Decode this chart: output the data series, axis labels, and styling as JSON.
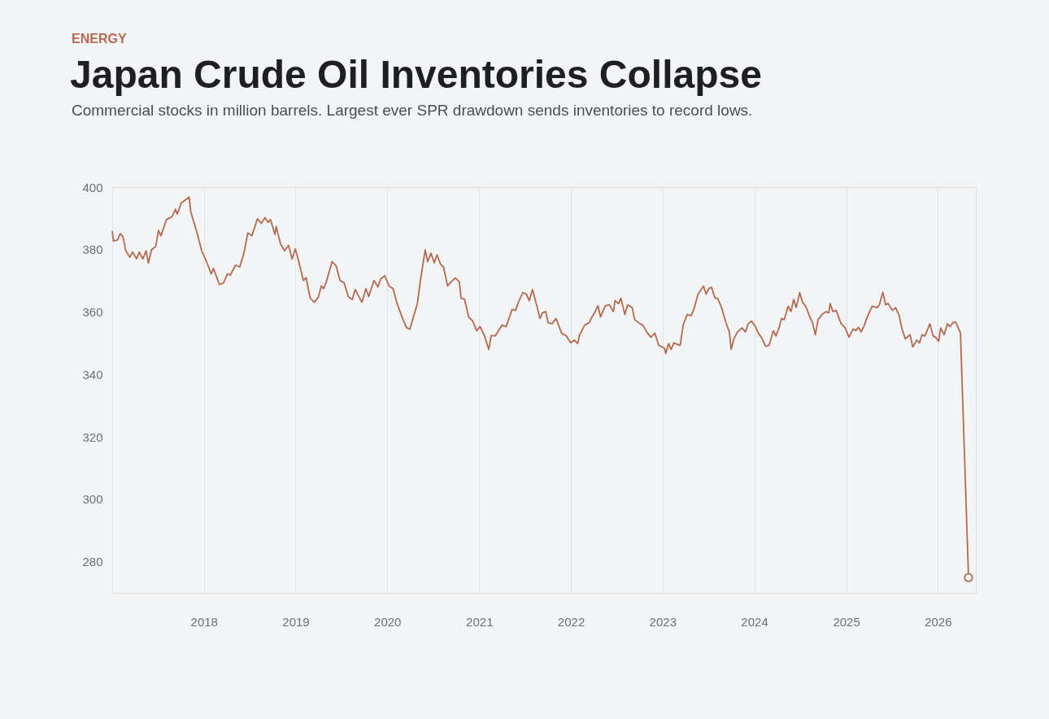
{
  "chart_data": {
    "type": "line",
    "title": "Japan Crude Oil Inventories Collapse",
    "subtitle": "Commercial stocks in million barrels. Largest ever SPR drawdown sends inventories to record lows.",
    "annotations": [
      "ENERGY"
    ],
    "xlim": [
      "2017-01-01",
      "2026-06-01"
    ],
    "xticks": [
      "2018",
      "2019",
      "2020",
      "2021",
      "2022",
      "2023",
      "2024",
      "2025",
      "2026"
    ],
    "ylim": [
      270,
      400
    ],
    "yticks": [
      280,
      300,
      320,
      340,
      360,
      380,
      400
    ],
    "grid": "x",
    "line_style": "solid",
    "marker": "none",
    "series": [
      {
        "color": "#b5694e",
        "x": [
          "2017-01-01",
          "2017-01-06",
          "2017-01-23",
          "2017-02-02",
          "2017-02-13",
          "2017-02-24",
          "2017-03-12",
          "2017-03-23",
          "2017-04-08",
          "2017-04-19",
          "2017-05-03",
          "2017-05-16",
          "2017-05-25",
          "2017-06-07",
          "2017-06-23",
          "2017-07-04",
          "2017-07-14",
          "2017-08-05",
          "2017-08-27",
          "2017-09-10",
          "2017-09-17",
          "2017-10-03",
          "2017-10-20",
          "2017-11-03",
          "2017-11-10",
          "2017-12-02",
          "2017-12-23",
          "2018-01-09",
          "2018-01-30",
          "2018-02-08",
          "2018-03-04",
          "2018-03-20",
          "2018-04-05",
          "2018-04-16",
          "2018-05-07",
          "2018-05-24",
          "2018-06-09",
          "2018-06-25",
          "2018-07-11",
          "2018-08-02",
          "2018-08-18",
          "2018-09-01",
          "2018-09-14",
          "2018-09-23",
          "2018-10-11",
          "2018-10-16",
          "2018-11-02",
          "2018-11-18",
          "2018-12-04",
          "2018-12-18",
          "2018-12-31",
          "2019-01-11",
          "2019-02-01",
          "2019-02-12",
          "2019-02-28",
          "2019-03-17",
          "2019-04-02",
          "2019-04-13",
          "2019-04-23",
          "2019-05-04",
          "2019-05-26",
          "2019-06-11",
          "2019-06-27",
          "2019-07-13",
          "2019-07-30",
          "2019-08-15",
          "2019-08-26",
          "2019-09-22",
          "2019-10-08",
          "2019-10-19",
          "2019-11-09",
          "2019-11-25",
          "2019-12-06",
          "2019-12-22",
          "2020-01-08",
          "2020-01-24",
          "2020-02-09",
          "2020-03-02",
          "2020-03-18",
          "2020-03-31",
          "2020-04-14",
          "2020-04-30",
          "2020-05-11",
          "2020-05-31",
          "2020-06-10",
          "2020-06-23",
          "2020-07-06",
          "2020-07-17",
          "2020-07-31",
          "2020-08-12",
          "2020-08-28",
          "2020-09-11",
          "2020-09-28",
          "2020-10-14",
          "2020-10-21",
          "2020-11-04",
          "2020-11-20",
          "2020-12-06",
          "2020-12-22",
          "2021-01-05",
          "2021-01-22",
          "2021-02-08",
          "2021-02-18",
          "2021-03-06",
          "2021-03-23",
          "2021-04-02",
          "2021-04-18",
          "2021-05-12",
          "2021-05-26",
          "2021-06-06",
          "2021-06-24",
          "2021-07-08",
          "2021-07-19",
          "2021-08-01",
          "2021-08-15",
          "2021-08-31",
          "2021-09-10",
          "2021-09-23",
          "2021-10-02",
          "2021-10-18",
          "2021-11-03",
          "2021-11-25",
          "2021-12-14",
          "2021-12-31",
          "2022-01-15",
          "2022-01-28",
          "2022-02-05",
          "2022-02-25",
          "2022-03-15",
          "2022-03-26",
          "2022-04-05",
          "2022-04-19",
          "2022-04-29",
          "2022-05-18",
          "2022-06-03",
          "2022-06-19",
          "2022-06-26",
          "2022-07-10",
          "2022-07-19",
          "2022-08-04",
          "2022-08-15",
          "2022-09-02",
          "2022-09-12",
          "2022-10-04",
          "2022-10-14",
          "2022-10-30",
          "2022-11-15",
          "2022-12-01",
          "2022-12-17",
          "2023-01-08",
          "2023-01-14",
          "2023-01-25",
          "2023-02-04",
          "2023-02-15",
          "2023-03-12",
          "2023-03-24",
          "2023-04-09",
          "2023-04-25",
          "2023-05-06",
          "2023-05-22",
          "2023-06-13",
          "2023-06-23",
          "2023-07-04",
          "2023-07-15",
          "2023-07-29",
          "2023-08-08",
          "2023-08-24",
          "2023-09-10",
          "2023-09-24",
          "2023-10-01",
          "2023-10-12",
          "2023-10-26",
          "2023-11-13",
          "2023-11-27",
          "2023-12-08",
          "2023-12-21",
          "2024-01-06",
          "2024-01-17",
          "2024-02-02",
          "2024-02-15",
          "2024-02-29",
          "2024-03-17",
          "2024-03-27",
          "2024-04-09",
          "2024-04-18",
          "2024-04-29",
          "2024-05-15",
          "2024-05-26",
          "2024-06-06",
          "2024-06-16",
          "2024-06-30",
          "2024-07-11",
          "2024-07-24",
          "2024-08-09",
          "2024-08-20",
          "2024-08-31",
          "2024-09-11",
          "2024-09-27",
          "2024-10-13",
          "2024-10-24",
          "2024-10-29",
          "2024-11-09",
          "2024-11-22",
          "2024-12-12",
          "2024-12-28",
          "2025-01-12",
          "2025-01-28",
          "2025-02-08",
          "2025-02-19",
          "2025-03-01",
          "2025-03-12",
          "2025-03-28",
          "2025-04-14",
          "2025-05-05",
          "2025-05-13",
          "2025-05-27",
          "2025-06-07",
          "2025-06-17",
          "2025-07-04",
          "2025-07-17",
          "2025-07-31",
          "2025-08-10",
          "2025-08-24",
          "2025-09-12",
          "2025-09-23",
          "2025-10-09",
          "2025-10-20",
          "2025-10-30",
          "2025-11-10",
          "2025-11-19",
          "2025-11-30",
          "2025-12-13",
          "2025-12-23",
          "2026-01-04",
          "2026-01-12",
          "2026-01-26",
          "2026-02-08",
          "2026-02-19",
          "2026-03-01",
          "2026-03-12",
          "2026-03-21",
          "2026-04-01",
          "2026-05-03"
        ],
        "values": [
          385.9,
          382.7,
          383.1,
          385.1,
          384.0,
          379.6,
          377.5,
          379.2,
          377.0,
          379.2,
          377.0,
          379.6,
          375.7,
          380.0,
          380.9,
          386.1,
          384.4,
          389.6,
          390.5,
          392.9,
          391.3,
          395.0,
          395.9,
          396.8,
          392.0,
          386.1,
          379.6,
          376.6,
          372.2,
          373.9,
          368.8,
          369.3,
          372.2,
          371.8,
          375.0,
          374.4,
          378.8,
          385.3,
          384.4,
          389.8,
          388.4,
          390.2,
          388.7,
          389.6,
          384.8,
          387.4,
          381.8,
          379.6,
          381.3,
          377.0,
          380.2,
          377.0,
          370.1,
          371.0,
          364.4,
          363.1,
          364.8,
          368.3,
          367.5,
          369.8,
          376.1,
          374.8,
          370.1,
          369.3,
          364.9,
          364.0,
          367.2,
          363.1,
          367.5,
          364.9,
          370.1,
          368.0,
          370.6,
          371.6,
          368.3,
          367.5,
          362.7,
          357.9,
          354.9,
          354.5,
          358.4,
          362.7,
          369.6,
          379.9,
          376.1,
          378.8,
          375.7,
          378.3,
          375.3,
          374.4,
          368.3,
          369.6,
          370.9,
          369.6,
          364.4,
          364.0,
          358.4,
          357.1,
          354.0,
          355.3,
          352.3,
          348.0,
          352.5,
          352.3,
          354.5,
          355.8,
          355.3,
          360.8,
          360.5,
          363.1,
          366.2,
          365.7,
          363.6,
          367.2,
          363.1,
          357.9,
          359.7,
          360.1,
          356.6,
          356.2,
          357.9,
          353.2,
          352.3,
          350.1,
          351.0,
          349.9,
          352.7,
          355.8,
          356.6,
          358.4,
          359.7,
          362.0,
          358.4,
          362.0,
          362.3,
          360.1,
          363.6,
          362.7,
          364.4,
          359.2,
          362.3,
          361.4,
          357.5,
          356.2,
          355.8,
          353.6,
          351.9,
          353.2,
          349.3,
          348.4,
          346.7,
          349.9,
          348.0,
          350.1,
          349.3,
          355.8,
          359.2,
          358.8,
          361.0,
          365.7,
          368.3,
          365.7,
          367.5,
          367.9,
          364.4,
          364.4,
          361.4,
          356.6,
          353.6,
          348.0,
          351.4,
          353.6,
          354.9,
          353.6,
          356.2,
          357.1,
          355.3,
          353.2,
          351.4,
          349.0,
          349.3,
          354.0,
          352.3,
          354.9,
          357.9,
          357.5,
          361.8,
          360.1,
          364.0,
          361.4,
          366.2,
          363.1,
          361.8,
          358.4,
          356.6,
          352.7,
          357.5,
          359.2,
          360.1,
          359.7,
          362.7,
          360.1,
          360.5,
          356.2,
          354.9,
          351.9,
          354.5,
          354.0,
          355.1,
          353.6,
          355.3,
          358.8,
          361.8,
          361.4,
          362.3,
          366.3,
          362.3,
          362.7,
          360.5,
          361.4,
          358.8,
          354.9,
          351.4,
          352.7,
          348.8,
          351.0,
          350.1,
          352.7,
          352.3,
          354.0,
          356.2,
          352.3,
          351.9,
          350.6,
          354.9,
          352.7,
          356.2,
          355.3,
          356.5,
          356.8,
          355.3,
          353.2,
          274.9
        ]
      },
      {
        "type": "scatter",
        "marker": "circle",
        "color": "#b5694e",
        "x": [
          "2026-05-03"
        ],
        "values": [
          274.9
        ]
      }
    ]
  }
}
